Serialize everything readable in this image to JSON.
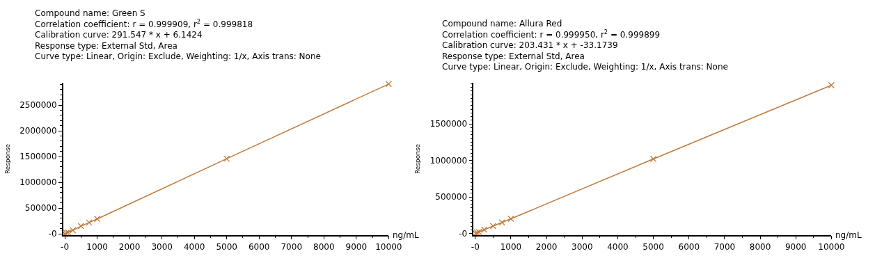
{
  "chart_data": [
    {
      "type": "line",
      "xlabel": "ng/mL",
      "ylabel": "Response",
      "annotations": [
        "Compound name: Green S",
        "Correlation coefficient: r = 0.999909, r$^{2}$ = 0.999818",
        "Calibration curve: 291.547 * x + 6.1424",
        "Response type: External Std, Area",
        "Curve type: Linear, Origin: Exclude, Weighting: 1/x, Axis trans: None"
      ],
      "x": [
        10,
        50,
        100,
        250,
        500,
        750,
        1000,
        5000,
        10000
      ],
      "series": [
        {
          "color": "#c07a3c",
          "values": [
            0,
            20000,
            30000,
            70000,
            150000,
            220000,
            290000,
            1460000,
            2910000
          ]
        }
      ],
      "xlim": [
        -50,
        10000
      ],
      "ylim": [
        -20000,
        2930000
      ],
      "xticks": [
        {
          "value": 0,
          "label": "-0"
        },
        1000,
        2000,
        3000,
        4000,
        5000,
        6000,
        7000,
        8000,
        9000,
        10000
      ],
      "yticks": [
        {
          "value": 0,
          "label": "-0"
        },
        500000,
        1000000,
        1500000,
        2000000,
        2500000
      ],
      "marker": "cross",
      "line_style": "solid"
    },
    {
      "type": "line",
      "xlabel": "ng/mL",
      "ylabel": "Response",
      "annotations": [
        "Compound name: Allura Red",
        "Correlation coefficient: r = 0.999950, r$^{2}$ = 0.999899",
        "Calibration curve: 203.431 * x + -33.1739",
        "Response type: External Std, Area",
        "Curve type: Linear, Origin: Exclude, Weighting: 1/x, Axis trans: None"
      ],
      "x": [
        10,
        50,
        100,
        250,
        500,
        750,
        1000,
        5000,
        10000
      ],
      "series": [
        {
          "color": "#c07a3c",
          "values": [
            0,
            10000,
            20000,
            50000,
            100000,
            150000,
            200000,
            1020000,
            2030000
          ]
        }
      ],
      "xlim": [
        -50,
        10000
      ],
      "ylim": [
        -20000,
        2060000
      ],
      "xticks": [
        {
          "value": 0,
          "label": "-0"
        },
        1000,
        2000,
        3000,
        4000,
        5000,
        6000,
        7000,
        8000,
        9000,
        10000
      ],
      "yticks": [
        {
          "value": 0,
          "label": "-0"
        },
        500000,
        1000000,
        1500000
      ],
      "marker": "cross",
      "line_style": "solid"
    }
  ]
}
